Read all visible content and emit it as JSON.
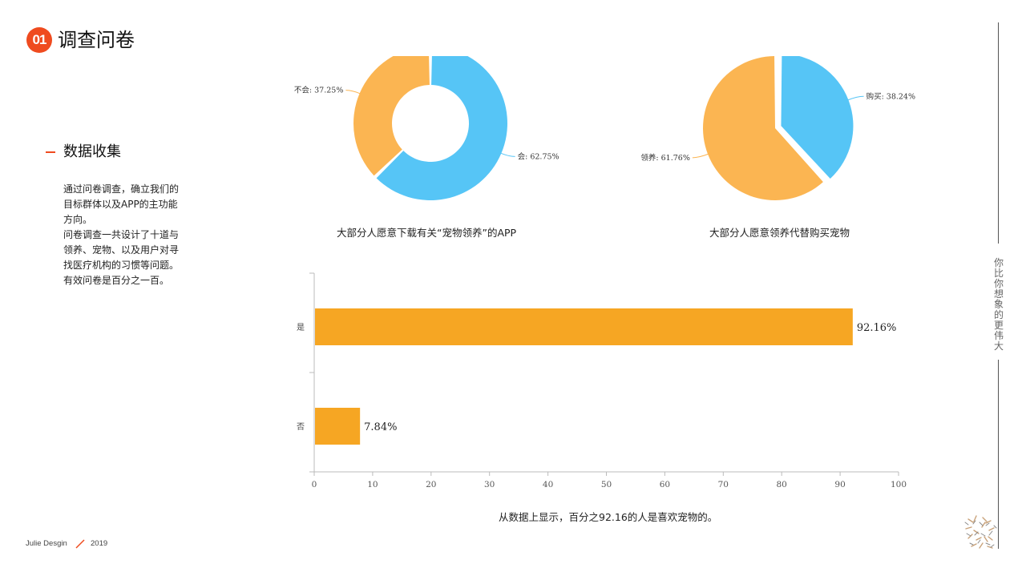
{
  "header": {
    "badge": "01",
    "title": "调查问卷"
  },
  "section": {
    "title": "数据收集",
    "description": [
      "通过问卷调查，确立我们的",
      "目标群体以及APP的主功能",
      "方向。",
      "问卷调查一共设计了十道与",
      "领养、宠物、以及用户对寻",
      "找医疗机构的习惯等问题。",
      "有效问卷是百分之一百。"
    ]
  },
  "footer": {
    "author": "Julie Desgin",
    "year": "2019"
  },
  "side_text": {
    "line1": "你比你想象的",
    "line2": "更伟大"
  },
  "colors": {
    "accent": "#ef4b1f",
    "blue": "#56c5f6",
    "orange": "#fbb552",
    "bar": "#f6a623"
  },
  "chart_data": [
    {
      "type": "pie",
      "variant": "donut",
      "title": "大部分人愿意下载有关“宠物领养”的APP",
      "slices": [
        {
          "name": "会",
          "value": 62.75,
          "label": "会: 62.75%",
          "color": "#56c5f6"
        },
        {
          "name": "不会",
          "value": 37.25,
          "label": "不会: 37.25%",
          "color": "#fbb552"
        }
      ]
    },
    {
      "type": "pie",
      "title": "大部分人愿意领养代替购买宠物",
      "slices": [
        {
          "name": "购买",
          "value": 38.24,
          "label": "购买: 38.24%",
          "color": "#56c5f6",
          "exploded": true
        },
        {
          "name": "领养",
          "value": 61.76,
          "label": "领养: 61.76%",
          "color": "#fbb552"
        }
      ]
    },
    {
      "type": "bar",
      "orientation": "horizontal",
      "title": "从数据上显示，百分之92.16的人是喜欢宠物的。",
      "categories": [
        "是",
        "否"
      ],
      "values": [
        92.16,
        7.84
      ],
      "value_labels": [
        "92.16%",
        "7.84%"
      ],
      "xlim": [
        0,
        100
      ],
      "xticks": [
        "0",
        "10",
        "20",
        "30",
        "40",
        "50",
        "60",
        "70",
        "80",
        "90",
        "100"
      ],
      "grid": false
    }
  ]
}
